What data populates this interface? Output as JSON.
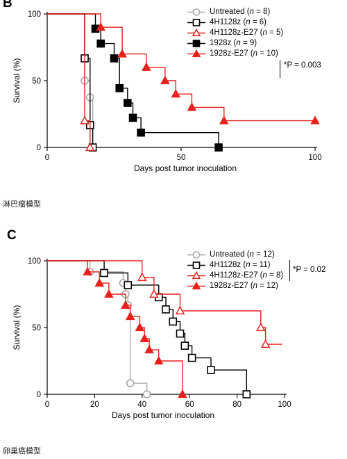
{
  "chart_data": [
    {
      "type": "line",
      "panel_letter": "B",
      "caption": "淋巴瘤模型",
      "title": "",
      "xlabel": "Days post tumor inoculation",
      "ylabel": "Survival (%)",
      "xlim": [
        0,
        100
      ],
      "ylim": [
        0,
        100
      ],
      "xticks": [
        0,
        50,
        100
      ],
      "yticks": [
        0,
        50,
        100
      ],
      "grid": false,
      "legend_position": "top-right",
      "pvalue": "*P = 0.003",
      "pvalue_groups": [
        "1928z",
        "1928z-E27"
      ],
      "series": [
        {
          "name": "Untreated",
          "n": "8",
          "color": "#a6a6a6",
          "marker": "circle-open",
          "points": [
            [
              0,
              100
            ],
            [
              14,
              100
            ],
            [
              14,
              50
            ],
            [
              16,
              50
            ],
            [
              16,
              37.5
            ],
            [
              17,
              37.5
            ],
            [
              17,
              0
            ],
            [
              18,
              0
            ]
          ]
        },
        {
          "name": "4H1128z",
          "n": "6",
          "color": "#000000",
          "marker": "square-open",
          "points": [
            [
              0,
              100
            ],
            [
              14,
              100
            ],
            [
              14,
              66.7
            ],
            [
              16,
              66.7
            ],
            [
              16,
              16.7
            ],
            [
              17,
              16.7
            ],
            [
              17,
              0
            ],
            [
              18,
              0
            ]
          ]
        },
        {
          "name": "4H1128z-E27",
          "n": "5",
          "color": "#e8211c",
          "marker": "triangle-open",
          "points": [
            [
              0,
              100
            ],
            [
              14,
              100
            ],
            [
              14,
              20
            ],
            [
              16,
              20
            ],
            [
              16,
              0
            ],
            [
              16,
              0
            ]
          ]
        },
        {
          "name": "1928z",
          "n": "9",
          "color": "#000000",
          "marker": "square-filled",
          "points": [
            [
              0,
              100
            ],
            [
              18,
              100
            ],
            [
              18,
              88.9
            ],
            [
              20,
              88.9
            ],
            [
              20,
              77.8
            ],
            [
              25,
              77.8
            ],
            [
              25,
              66.7
            ],
            [
              27,
              66.7
            ],
            [
              27,
              44.4
            ],
            [
              30,
              44.4
            ],
            [
              30,
              33.3
            ],
            [
              32,
              33.3
            ],
            [
              32,
              22.2
            ],
            [
              35,
              22.2
            ],
            [
              35,
              11.1
            ],
            [
              64,
              11.1
            ],
            [
              64,
              0
            ],
            [
              64,
              0
            ]
          ]
        },
        {
          "name": "1928z-E27",
          "n": "10",
          "color": "#e8211c",
          "marker": "triangle-filled",
          "points": [
            [
              0,
              100
            ],
            [
              20,
              100
            ],
            [
              20,
              90
            ],
            [
              28,
              90
            ],
            [
              28,
              70
            ],
            [
              37,
              70
            ],
            [
              37,
              60
            ],
            [
              44,
              60
            ],
            [
              44,
              50
            ],
            [
              48,
              50
            ],
            [
              48,
              40
            ],
            [
              54,
              40
            ],
            [
              54,
              30
            ],
            [
              66,
              30
            ],
            [
              66,
              20
            ],
            [
              100,
              20
            ]
          ]
        }
      ]
    },
    {
      "type": "line",
      "panel_letter": "C",
      "caption": "卵巢癌模型",
      "title": "",
      "xlabel": "Days post tumor inoculation",
      "ylabel": "Survival (%)",
      "xlim": [
        0,
        100
      ],
      "ylim": [
        0,
        100
      ],
      "xticks": [
        0,
        20,
        40,
        60,
        80,
        100
      ],
      "yticks": [
        0,
        50,
        100
      ],
      "grid": false,
      "legend_position": "top-right",
      "pvalue": "*P = 0.02",
      "pvalue_groups": [
        "4H1128z",
        "4H1128z-E27"
      ],
      "series": [
        {
          "name": "Untreated",
          "n": "12",
          "color": "#a6a6a6",
          "marker": "circle-open",
          "points": [
            [
              0,
              100
            ],
            [
              18,
              100
            ],
            [
              18,
              91.7
            ],
            [
              32,
              91.7
            ],
            [
              32,
              83.3
            ],
            [
              33,
              83.3
            ],
            [
              33,
              75
            ],
            [
              34,
              75
            ],
            [
              34,
              66.7
            ],
            [
              35,
              66.7
            ],
            [
              35,
              8.3
            ],
            [
              42,
              8.3
            ],
            [
              42,
              0
            ],
            [
              42,
              0
            ]
          ]
        },
        {
          "name": "4H1128z",
          "n": "11",
          "color": "#000000",
          "marker": "square-open",
          "points": [
            [
              0,
              100
            ],
            [
              24,
              100
            ],
            [
              24,
              90.9
            ],
            [
              34,
              90.9
            ],
            [
              34,
              81.8
            ],
            [
              47,
              81.8
            ],
            [
              47,
              72.7
            ],
            [
              50,
              72.7
            ],
            [
              50,
              63.6
            ],
            [
              53,
              63.6
            ],
            [
              53,
              54.5
            ],
            [
              56,
              54.5
            ],
            [
              56,
              45.5
            ],
            [
              58,
              45.5
            ],
            [
              58,
              36.4
            ],
            [
              61,
              36.4
            ],
            [
              61,
              27.3
            ],
            [
              69,
              27.3
            ],
            [
              69,
              18.2
            ],
            [
              84,
              18.2
            ],
            [
              84,
              0
            ],
            [
              84,
              0
            ]
          ]
        },
        {
          "name": "4H1128z-E27",
          "n": "8",
          "color": "#e8211c",
          "marker": "triangle-open",
          "points": [
            [
              0,
              100
            ],
            [
              40,
              100
            ],
            [
              40,
              87.5
            ],
            [
              45,
              87.5
            ],
            [
              45,
              75
            ],
            [
              56,
              75
            ],
            [
              56,
              62.5
            ],
            [
              90,
              62.5
            ],
            [
              90,
              50
            ],
            [
              92,
              50
            ],
            [
              92,
              37.5
            ],
            [
              99,
              37.5
            ]
          ]
        },
        {
          "name": "1928z-E27",
          "n": "12",
          "color": "#e8211c",
          "marker": "triangle-filled",
          "points": [
            [
              0,
              100
            ],
            [
              17,
              100
            ],
            [
              17,
              91.7
            ],
            [
              22,
              91.7
            ],
            [
              22,
              83.3
            ],
            [
              26,
              83.3
            ],
            [
              26,
              75
            ],
            [
              33,
              75
            ],
            [
              33,
              66.7
            ],
            [
              35,
              66.7
            ],
            [
              35,
              58.3
            ],
            [
              39,
              58.3
            ],
            [
              39,
              50
            ],
            [
              41,
              50
            ],
            [
              41,
              41.7
            ],
            [
              43,
              41.7
            ],
            [
              43,
              33.3
            ],
            [
              47,
              33.3
            ],
            [
              47,
              25
            ],
            [
              57,
              25
            ],
            [
              57,
              0
            ],
            [
              57,
              0
            ]
          ]
        }
      ]
    }
  ]
}
